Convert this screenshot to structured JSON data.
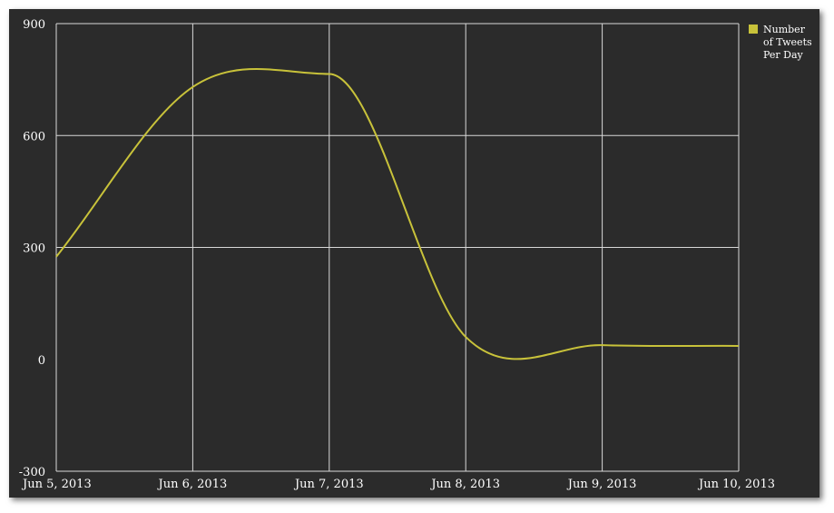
{
  "chart_data": {
    "type": "line",
    "title": "",
    "xlabel": "",
    "ylabel": "",
    "ylim": [
      -300,
      900
    ],
    "yticks": [
      {
        "value": -300,
        "label": "-300"
      },
      {
        "value": 0,
        "label": "0"
      },
      {
        "value": 300,
        "label": "300"
      },
      {
        "value": 600,
        "label": "600"
      },
      {
        "value": 900,
        "label": "900"
      }
    ],
    "xticks": [
      "Jun 5, 2013",
      "Jun 6, 2013",
      "Jun 7, 2013",
      "Jun 8, 2013",
      "Jun 9, 2013",
      "Jun 10, 2013"
    ],
    "grid": true,
    "legend_position": "top-right",
    "series": [
      {
        "name": "Number of Tweets Per Day",
        "name_lines": [
          "Number",
          "of Tweets",
          "Per Day"
        ],
        "color": "#c8c23a",
        "x": [
          "Jun 5, 2013",
          "Jun 6, 2013",
          "Jun 7, 2013",
          "Jun 8, 2013",
          "Jun 9, 2013",
          "Jun 10, 2013"
        ],
        "values": [
          275,
          730,
          765,
          60,
          38,
          36
        ]
      }
    ]
  }
}
